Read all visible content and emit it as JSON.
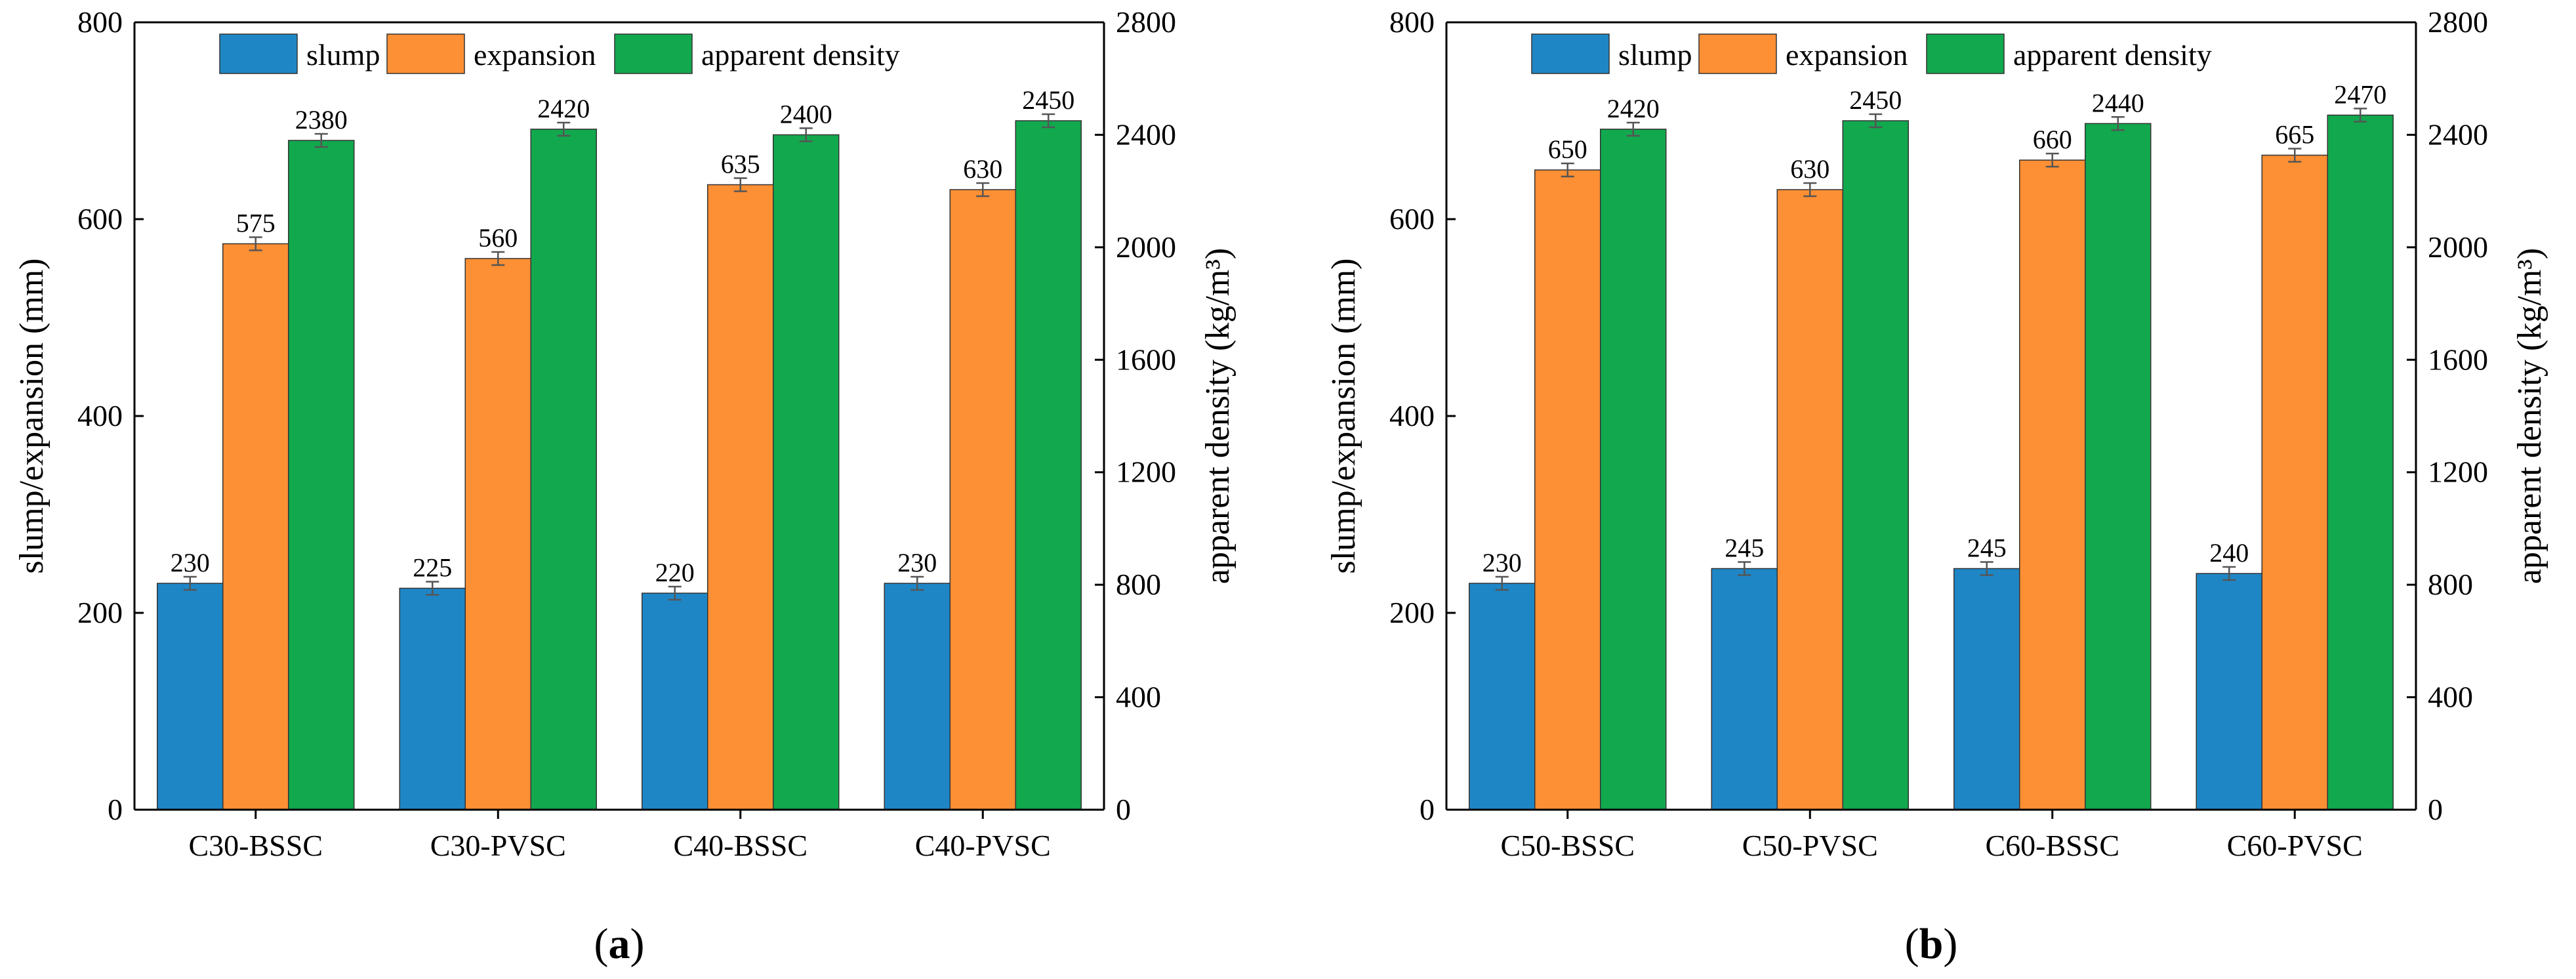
{
  "chart_data": [
    {
      "type": "bar",
      "panel_label": "a",
      "categories": [
        "C30-BSSC",
        "C30-PVSC",
        "C40-BSSC",
        "C40-PVSC"
      ],
      "series": [
        {
          "name": "slump",
          "axis": "left",
          "color": "#1f86c6",
          "values": [
            230,
            225,
            220,
            230
          ]
        },
        {
          "name": "expansion",
          "axis": "left",
          "color": "#fd8f34",
          "values": [
            575,
            560,
            635,
            630
          ]
        },
        {
          "name": "apparent density",
          "axis": "right",
          "color": "#12a84e",
          "values": [
            2380,
            2420,
            2400,
            2450
          ]
        }
      ],
      "ylabel": "slump/expansion (mm)",
      "ylabel2": "apparent density (kg/m³)",
      "ylim": [
        0,
        800
      ],
      "ylim2": [
        0,
        2800
      ],
      "yticks": [
        0,
        200,
        400,
        600,
        800
      ],
      "yticks2": [
        0,
        400,
        800,
        1200,
        1600,
        2000,
        2400,
        2800
      ],
      "legend": "top-center",
      "error_bars": true
    },
    {
      "type": "bar",
      "panel_label": "b",
      "categories": [
        "C50-BSSC",
        "C50-PVSC",
        "C60-BSSC",
        "C60-PVSC"
      ],
      "series": [
        {
          "name": "slump",
          "axis": "left",
          "color": "#1f86c6",
          "values": [
            230,
            245,
            245,
            240
          ]
        },
        {
          "name": "expansion",
          "axis": "left",
          "color": "#fd8f34",
          "values": [
            650,
            630,
            660,
            665
          ]
        },
        {
          "name": "apparent density",
          "axis": "right",
          "color": "#12a84e",
          "values": [
            2420,
            2450,
            2440,
            2470
          ]
        }
      ],
      "ylabel": "slump/expansion (mm)",
      "ylabel2": "apparent density (kg/m³)",
      "ylim": [
        0,
        800
      ],
      "ylim2": [
        0,
        2800
      ],
      "yticks": [
        0,
        200,
        400,
        600,
        800
      ],
      "yticks2": [
        0,
        400,
        800,
        1200,
        1600,
        2000,
        2400,
        2800
      ],
      "legend": "top-center",
      "error_bars": true
    }
  ]
}
